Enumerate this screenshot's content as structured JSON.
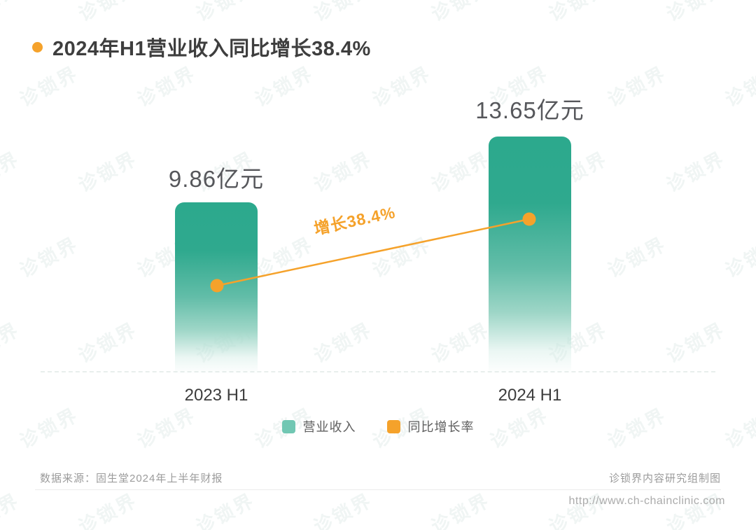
{
  "title": {
    "text": "2024年H1营业收入同比增长38.4%"
  },
  "watermark": {
    "text": "诊锁界"
  },
  "chart_data": {
    "type": "bar",
    "categories": [
      "2023 H1",
      "2024 H1"
    ],
    "series": [
      {
        "name": "营业收入",
        "values": [
          9.86,
          13.65
        ],
        "unit": "亿元"
      },
      {
        "name": "同比增长率",
        "growth_rate_pct": 38.4
      }
    ],
    "value_labels": [
      "9.86亿元",
      "13.65亿元"
    ],
    "growth_label": "增长38.4%",
    "growth_rate_pct": 38.4,
    "title": "2024年H1营业收入同比增长38.4%",
    "ylim": [
      0,
      13.65
    ],
    "grid": false,
    "legend_position": "bottom",
    "legend": [
      {
        "label": "营业收入",
        "color": "#71c7b3"
      },
      {
        "label": "同比增长率",
        "color": "#f5a22b"
      }
    ]
  },
  "colors": {
    "bar_teal": "#2ca98d",
    "legend_teal": "#71c7b3",
    "accent_orange": "#f5a22b",
    "title_gray": "#3e3e3e"
  },
  "footer": {
    "source": "数据来源：固生堂2024年上半年财报",
    "credit": "诊锁界内容研究组制图",
    "url": "http://www.ch-chainclinic.com"
  }
}
